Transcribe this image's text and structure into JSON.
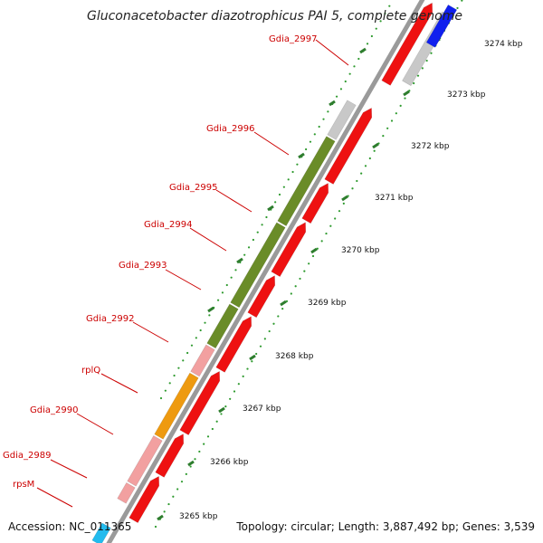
{
  "header": {
    "title": "Gluconacetobacter diazotrophicus PAI 5, complete genome"
  },
  "footer": {
    "accession": "Accession: NC_011365",
    "summary": "Topology: circular; Length: 3,887,492 bp; Genes: 3,539"
  },
  "colors": {
    "background": "#ffffff",
    "backbone": "#9a9a9a",
    "label_text": "#cc0000",
    "label_line": "#cc0000",
    "tick_major": "#2e7d2e",
    "tick_minor": "#2e9a2e",
    "cds": "#ee1111",
    "rrna": "#6a8c28",
    "trna": "#ee9a10",
    "misc": "#c8c8c8",
    "pseudo": "#f2a0a0",
    "other_a": "#1020ee",
    "other_b": "#22bbee"
  },
  "axis": {
    "unit": "kbp",
    "scale_labels": [
      "3265 kbp",
      "3266 kbp",
      "3267 kbp",
      "3268 kbp",
      "3269 kbp",
      "3270 kbp",
      "3271 kbp",
      "3272 kbp",
      "3273 kbp",
      "3274 kbp"
    ]
  },
  "genes": [
    {
      "label": "Gdia_2997",
      "type": "cds"
    },
    {
      "label": "Gdia_2996",
      "type": "misc"
    },
    {
      "label": "Gdia_2995",
      "type": "rrna"
    },
    {
      "label": "Gdia_2994",
      "type": "rrna"
    },
    {
      "label": "Gdia_2993",
      "type": "rrna"
    },
    {
      "label": "Gdia_2992",
      "type": "rrna"
    },
    {
      "label": "rplQ",
      "type": "pseudo"
    },
    {
      "label": "Gdia_2990",
      "type": "trna"
    },
    {
      "label": "Gdia_2989",
      "type": "pseudo"
    },
    {
      "label": "rpsM",
      "type": "pseudo"
    }
  ]
}
